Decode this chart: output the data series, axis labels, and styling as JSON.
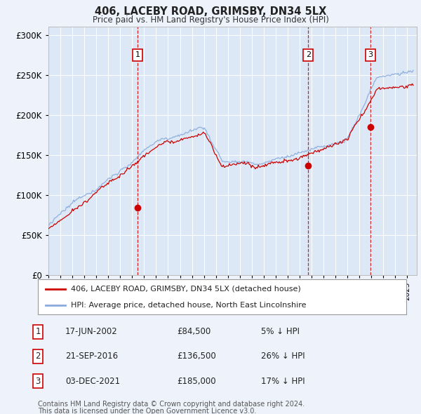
{
  "title": "406, LACEBY ROAD, GRIMSBY, DN34 5LX",
  "subtitle": "Price paid vs. HM Land Registry's House Price Index (HPI)",
  "background_color": "#eef2fa",
  "plot_bg_color": "#dce8f5",
  "ylim": [
    0,
    310000
  ],
  "yticks": [
    0,
    50000,
    100000,
    150000,
    200000,
    250000,
    300000
  ],
  "ytick_labels": [
    "£0",
    "£50K",
    "£100K",
    "£150K",
    "£200K",
    "£250K",
    "£300K"
  ],
  "sale_dates_num": [
    2002.46,
    2016.72,
    2021.92
  ],
  "sale_prices": [
    84500,
    136500,
    185000
  ],
  "sale_labels": [
    "1",
    "2",
    "3"
  ],
  "legend_house": "406, LACEBY ROAD, GRIMSBY, DN34 5LX (detached house)",
  "legend_hpi": "HPI: Average price, detached house, North East Lincolnshire",
  "table_entries": [
    {
      "label": "1",
      "date": "17-JUN-2002",
      "price": "£84,500",
      "pct": "5% ↓ HPI"
    },
    {
      "label": "2",
      "date": "21-SEP-2016",
      "price": "£136,500",
      "pct": "26% ↓ HPI"
    },
    {
      "label": "3",
      "date": "03-DEC-2021",
      "price": "£185,000",
      "pct": "17% ↓ HPI"
    }
  ],
  "footnote1": "Contains HM Land Registry data © Crown copyright and database right 2024.",
  "footnote2": "This data is licensed under the Open Government Licence v3.0.",
  "house_line_color": "#cc0000",
  "hpi_line_color": "#88aadd",
  "sale_marker_color": "#cc0000",
  "vline_color": "#cc0000",
  "grid_color": "#ffffff"
}
